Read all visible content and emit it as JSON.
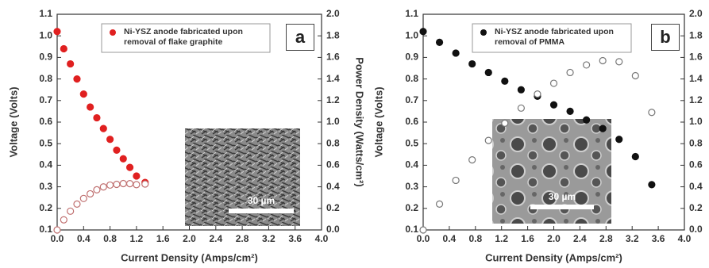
{
  "chart_data": [
    {
      "type": "scatter",
      "panel_label": "a",
      "inset_label": "30 µm",
      "x_label": "Current Density (Amps/cm²)",
      "y_label": "Voltage (Volts)",
      "y2_label": "Power Density (Watts/cm²)",
      "x": [
        0.0,
        0.1,
        0.2,
        0.3,
        0.4,
        0.5,
        0.6,
        0.7,
        0.8,
        0.9,
        1.0,
        1.1,
        1.2,
        1.33
      ],
      "series": [
        {
          "name": "Ni-YSZ anode fabricated upon removal of flake graphite",
          "color": "#e02020",
          "marker": "filled",
          "values": [
            1.02,
            0.94,
            0.87,
            0.8,
            0.73,
            0.67,
            0.62,
            0.57,
            0.52,
            0.47,
            0.43,
            0.39,
            0.35,
            0.32
          ]
        },
        {
          "color": "#c07070",
          "marker": "open",
          "axis": "y2",
          "values": [
            0.0,
            0.094,
            0.174,
            0.24,
            0.292,
            0.335,
            0.372,
            0.399,
            0.416,
            0.423,
            0.43,
            0.429,
            0.42,
            0.426
          ]
        }
      ],
      "xlim": [
        0,
        4
      ],
      "ylim": [
        0.1,
        1.1
      ],
      "y2lim": [
        0,
        2
      ],
      "xticks": [
        {
          "value": 0,
          "label": "0.0"
        },
        0.4,
        0.8,
        1.2,
        1.6,
        {
          "value": 2,
          "label": "2.0"
        },
        2.4,
        2.8,
        3.2,
        3.6,
        {
          "value": 4,
          "label": "4.0"
        }
      ],
      "yticks": [
        0.1,
        0.2,
        0.3,
        0.4,
        0.5,
        0.6,
        0.7,
        0.8,
        0.9,
        {
          "value": 1,
          "label": "1.0"
        },
        1.1
      ],
      "y2ticks": [
        {
          "value": 0,
          "label": "0.0"
        },
        0.2,
        0.4,
        0.6,
        0.8,
        {
          "value": 1,
          "label": "1.0"
        },
        1.2,
        1.4,
        1.6,
        1.8,
        {
          "value": 2,
          "label": "2.0"
        }
      ]
    },
    {
      "type": "scatter",
      "panel_label": "b",
      "inset_label": "30 µm",
      "x_label": "Current Density (Amps/cm²)",
      "y_label": "Voltage (Volts)",
      "x": [
        0.0,
        0.25,
        0.5,
        0.75,
        1.0,
        1.25,
        1.5,
        1.75,
        2.0,
        2.25,
        2.5,
        2.75,
        3.0,
        3.25,
        3.5
      ],
      "series": [
        {
          "name": "Ni-YSZ anode fabricated upon removal of PMMA",
          "color": "#111111",
          "marker": "filled",
          "values": [
            1.02,
            0.97,
            0.92,
            0.87,
            0.83,
            0.79,
            0.75,
            0.72,
            0.68,
            0.65,
            0.61,
            0.57,
            0.52,
            0.44,
            0.31
          ]
        },
        {
          "color": "#777777",
          "marker": "open",
          "axis": "y2",
          "values": [
            0.0,
            0.24,
            0.46,
            0.65,
            0.83,
            0.99,
            1.13,
            1.26,
            1.36,
            1.46,
            1.53,
            1.57,
            1.56,
            1.43,
            1.09
          ]
        }
      ],
      "xlim": [
        0,
        4
      ],
      "ylim": [
        0.1,
        1.1
      ],
      "y2lim": [
        0,
        2
      ],
      "xticks": [
        {
          "value": 0,
          "label": "0.0"
        },
        0.4,
        0.8,
        1.2,
        1.6,
        {
          "value": 2,
          "label": "2.0"
        },
        2.4,
        2.8,
        3.2,
        3.6,
        {
          "value": 4,
          "label": "4.0"
        }
      ],
      "yticks": [
        0.1,
        0.2,
        0.3,
        0.4,
        0.5,
        0.6,
        0.7,
        0.8,
        0.9,
        {
          "value": 1,
          "label": "1.0"
        },
        1.1
      ],
      "y2ticks": [
        {
          "value": 0,
          "label": "0.0"
        },
        0.2,
        0.4,
        0.6,
        0.8,
        {
          "value": 1,
          "label": "1.0"
        },
        1.2,
        1.4,
        1.6,
        1.8,
        {
          "value": 2,
          "label": "2.0"
        }
      ]
    }
  ]
}
